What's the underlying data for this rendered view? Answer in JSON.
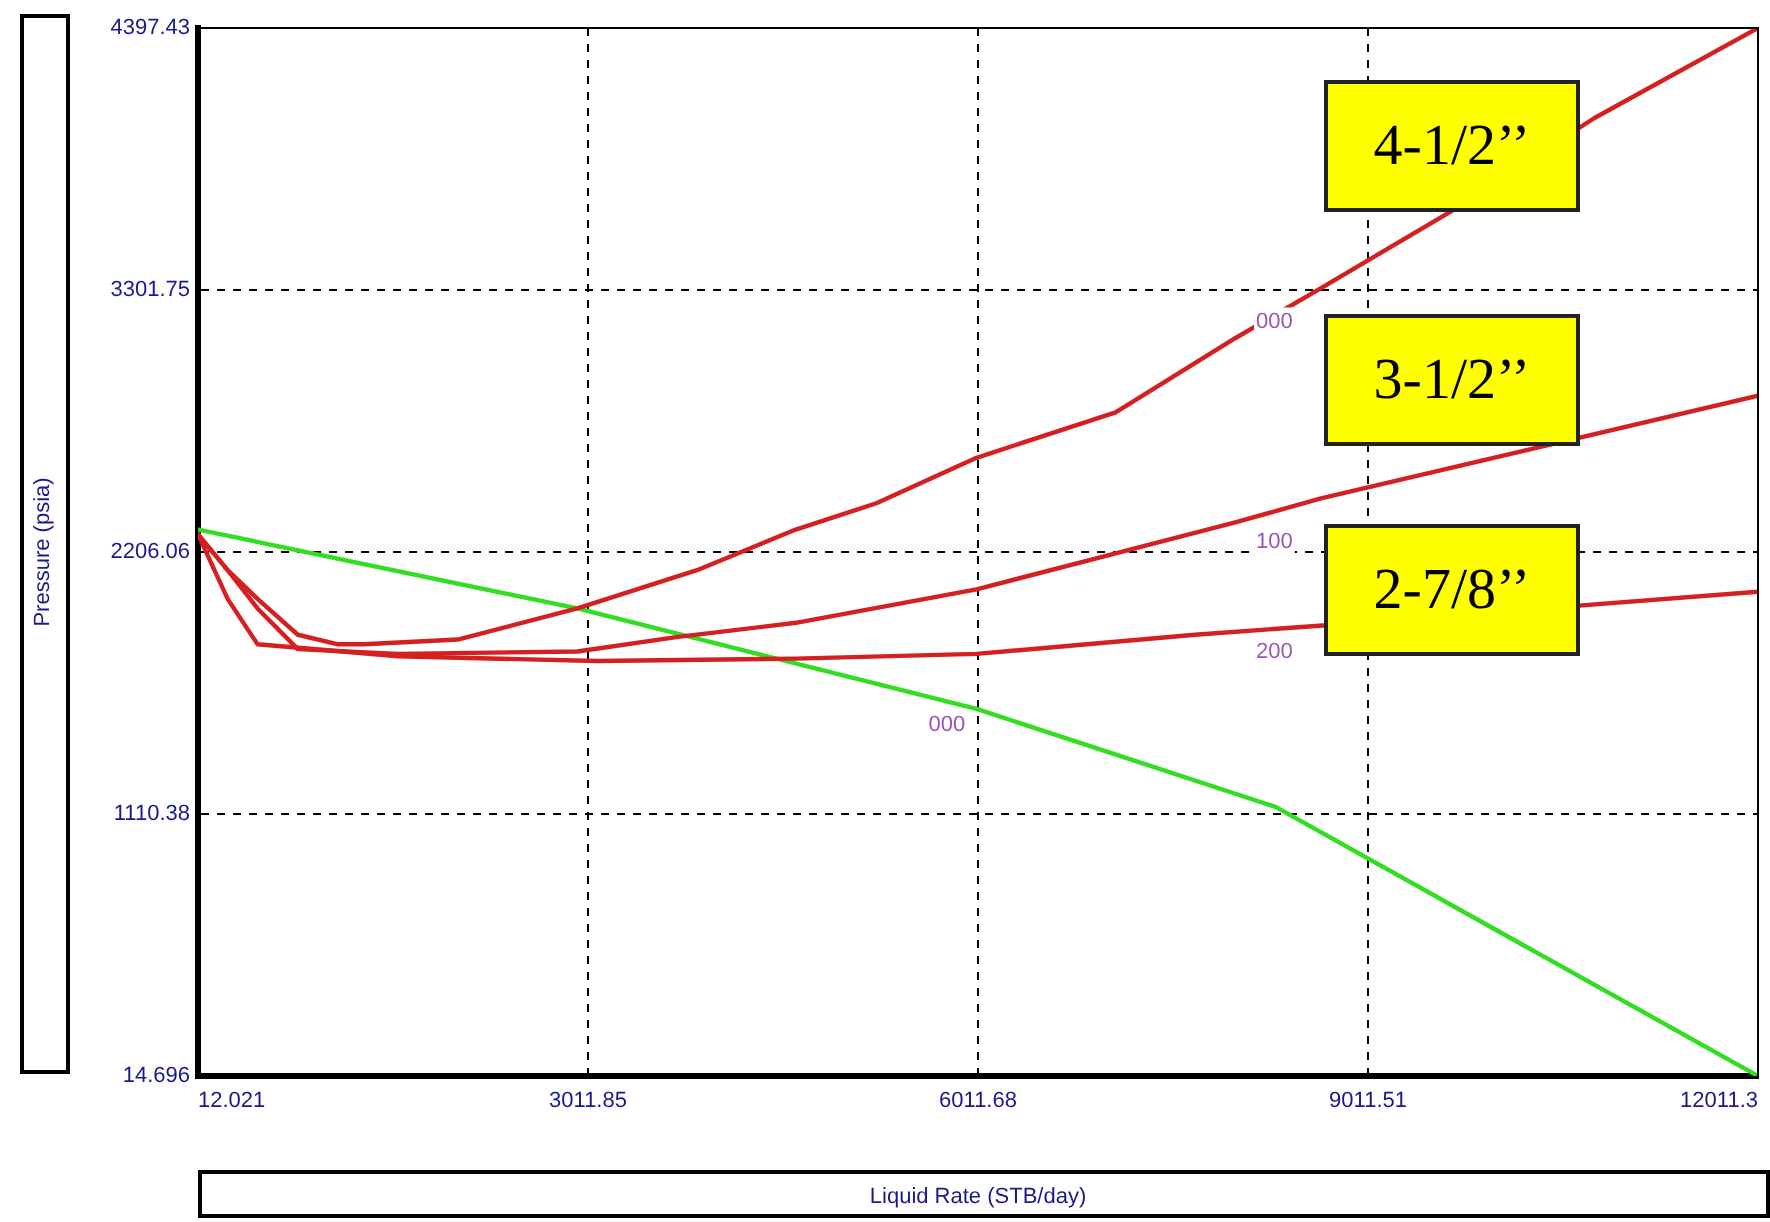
{
  "chart_data": {
    "type": "line",
    "xlabel": "Liquid Rate (STB/day)",
    "ylabel": "Pressure (psia)",
    "xlim": [
      12.021,
      12011.3
    ],
    "xticks": [
      12.021,
      3011.85,
      6011.68,
      9011.51,
      12011.3
    ],
    "ylim": [
      14.696,
      4397.43
    ],
    "yticks": [
      14.696,
      1110.38,
      2206.06,
      3301.75,
      4397.43
    ],
    "grid": true,
    "marker": "none",
    "line_style": "solid",
    "series": [
      {
        "name": "4-1/2’’",
        "color": "#d42020",
        "x": [
          12.021,
          240,
          470,
          780,
          1090,
          1290,
          2010,
          2930,
          3850,
          4610,
          5230,
          6000,
          7070,
          7990,
          8650,
          9680,
          10750,
          12011.3
        ],
        "values": [
          2280,
          2130,
          2010,
          1860,
          1820,
          1820,
          1840,
          1970,
          2130,
          2300,
          2410,
          2600,
          2790,
          3100,
          3310,
          3640,
          4020,
          4397.43
        ]
      },
      {
        "name": "3-1/2’’",
        "color": "#d42020",
        "x": [
          12.021,
          240,
          470,
          780,
          1550,
          2930,
          3690,
          4610,
          6000,
          7070,
          7990,
          8650,
          12011.3
        ],
        "values": [
          2280,
          2130,
          1970,
          1800,
          1780,
          1790,
          1850,
          1910,
          2050,
          2200,
          2330,
          2430,
          2860
        ]
      },
      {
        "name": "2-7/8’’",
        "color": "#d42020",
        "x": [
          12.021,
          240,
          470,
          1550,
          3080,
          4610,
          6000,
          7680,
          8690,
          12011.3
        ],
        "values": [
          2280,
          2010,
          1820,
          1770,
          1750,
          1760,
          1780,
          1860,
          1900,
          2040
        ]
      },
      {
        "color": "#33dd22",
        "x": [
          12.021,
          2930,
          6000,
          8300,
          12011.3
        ],
        "values": [
          2300,
          1970,
          1550,
          1140,
          14.696
        ]
      }
    ],
    "annotations": [
      "000",
      "100",
      "200",
      "000"
    ]
  }
}
